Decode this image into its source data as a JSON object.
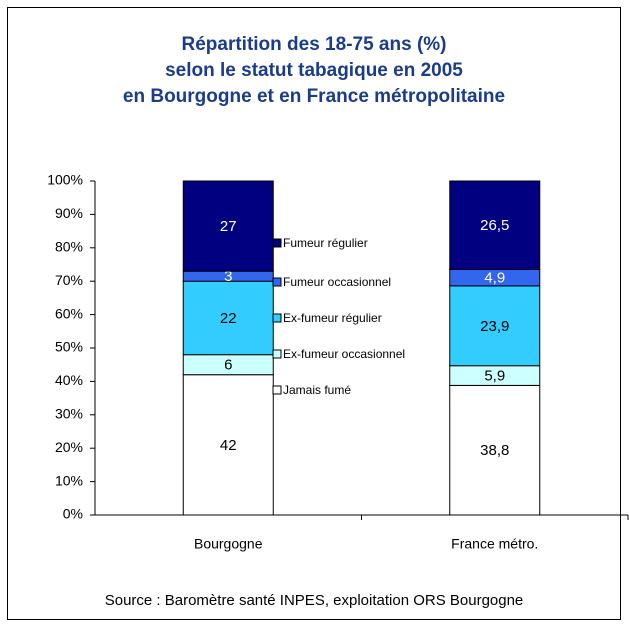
{
  "chart_data": {
    "type": "stacked_bar",
    "title": [
      "Répartition des 18-75 ans (%)",
      "selon le statut tabagique en 2005",
      "en Bourgogne et en France métropolitaine"
    ],
    "categories": [
      "Bourgogne",
      "France métro."
    ],
    "series": [
      {
        "name": "Jamais fumé",
        "color": "#ffffff",
        "values": [
          42,
          38.8
        ],
        "value_labels": [
          "42",
          "38,8"
        ]
      },
      {
        "name": "Ex-fumeur occasionnel",
        "color": "#ccffff",
        "values": [
          6,
          5.9
        ],
        "value_labels": [
          "6",
          "5,9"
        ]
      },
      {
        "name": "Ex-fumeur régulier",
        "color": "#33ccff",
        "values": [
          22,
          23.9
        ],
        "value_labels": [
          "22",
          "23,9"
        ]
      },
      {
        "name": "Fumeur occasionnel",
        "color": "#3366ee",
        "values": [
          3,
          4.9
        ],
        "value_labels": [
          "3",
          "4,9"
        ]
      },
      {
        "name": "Fumeur régulier",
        "color": "#000080",
        "values": [
          27,
          26.5
        ],
        "value_labels": [
          "27",
          "26,5"
        ]
      }
    ],
    "ylim": [
      0,
      100
    ],
    "yticks": [
      {
        "value": 0,
        "label": "0%"
      },
      {
        "value": 10,
        "label": "10%"
      },
      {
        "value": 20,
        "label": "20%"
      },
      {
        "value": 30,
        "label": "30%"
      },
      {
        "value": 40,
        "label": "40%"
      },
      {
        "value": 50,
        "label": "50%"
      },
      {
        "value": 60,
        "label": "60%"
      },
      {
        "value": 70,
        "label": "70%"
      },
      {
        "value": 80,
        "label": "80%"
      },
      {
        "value": 90,
        "label": "90%"
      },
      {
        "value": 100,
        "label": "100%"
      }
    ],
    "source": "Source : Baromètre santé INPES, exploitation ORS Bourgogne"
  }
}
